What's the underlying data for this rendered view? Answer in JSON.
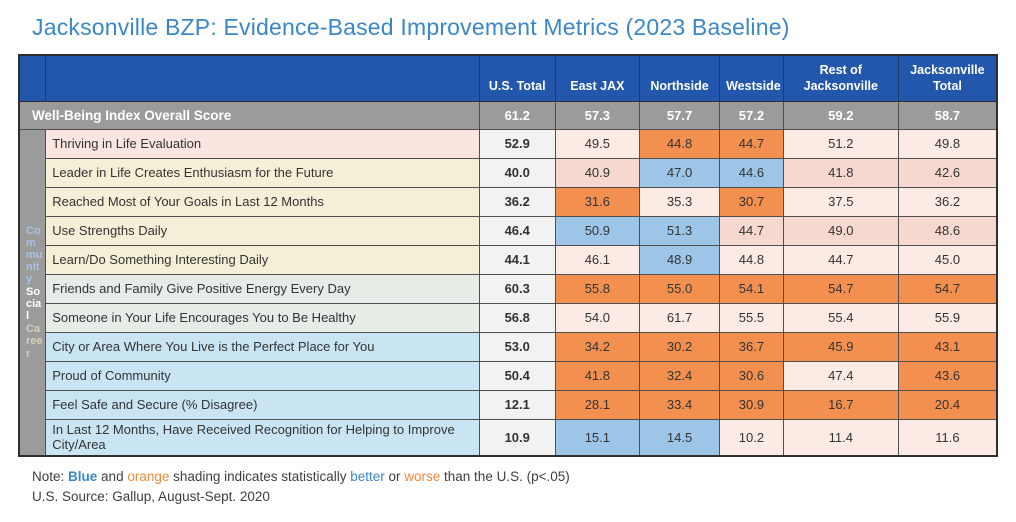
{
  "title": "Jacksonville BZP: Evidence-Based Improvement Metrics (2023 Baseline)",
  "chart_data": {
    "type": "table",
    "title": "Jacksonville BZP: Evidence-Based Improvement Metrics (2023 Baseline)",
    "columns": [
      "U.S. Total",
      "East JAX",
      "Northside",
      "Westside",
      "Rest of Jacksonville",
      "Jacksonville Total"
    ],
    "overall_row": {
      "label": "Well-Being Index Overall Score",
      "values": [
        "61.2",
        "57.3",
        "57.7",
        "57.2",
        "59.2",
        "58.7"
      ]
    },
    "side_labels": [
      {
        "text": "Community",
        "color": "#A9C2E4"
      },
      {
        "text": "Social",
        "color": "#FFFFFF"
      },
      {
        "text": "Career",
        "color": "#D6D0B8"
      }
    ],
    "shading_legend": {
      "blue_means": "statistically better than the U.S.",
      "orange_means": "statistically worse than the U.S.",
      "blue_hex": "#9DC5E8",
      "orange_hex": "#F4904F"
    },
    "rows": [
      {
        "label": "Thriving in Life Evaluation",
        "label_bg": "pink",
        "us": "52.9",
        "values": [
          "49.5",
          "44.8",
          "44.7",
          "51.2",
          "49.8"
        ],
        "shades": [
          "p1",
          "orange",
          "orange",
          "p1",
          "p1"
        ]
      },
      {
        "label": "Leader in Life Creates Enthusiasm for the Future",
        "label_bg": "cream",
        "us": "40.0",
        "values": [
          "40.9",
          "47.0",
          "44.6",
          "41.8",
          "42.6"
        ],
        "shades": [
          "p2",
          "blue",
          "blue",
          "p2",
          "p2"
        ]
      },
      {
        "label": "Reached Most of Your Goals in Last 12 Months",
        "label_bg": "cream",
        "us": "36.2",
        "values": [
          "31.6",
          "35.3",
          "30.7",
          "37.5",
          "36.2"
        ],
        "shades": [
          "orange",
          "p1",
          "orange",
          "p1",
          "p1"
        ]
      },
      {
        "label": "Use Strengths Daily",
        "label_bg": "cream",
        "us": "46.4",
        "values": [
          "50.9",
          "51.3",
          "44.7",
          "49.0",
          "48.6"
        ],
        "shades": [
          "blue",
          "blue",
          "p2",
          "p2",
          "p2"
        ]
      },
      {
        "label": "Learn/Do Something Interesting Daily",
        "label_bg": "cream",
        "us": "44.1",
        "values": [
          "46.1",
          "48.9",
          "44.8",
          "44.7",
          "45.0"
        ],
        "shades": [
          "p1",
          "blue",
          "p1",
          "p1",
          "p1"
        ]
      },
      {
        "label": "Friends and Family Give Positive Energy Every Day",
        "label_bg": "mint",
        "us": "60.3",
        "values": [
          "55.8",
          "55.0",
          "54.1",
          "54.7",
          "54.7"
        ],
        "shades": [
          "orange",
          "orange",
          "orange",
          "orange",
          "orange"
        ]
      },
      {
        "label": "Someone in Your Life Encourages You to Be Healthy",
        "label_bg": "mint",
        "us": "56.8",
        "values": [
          "54.0",
          "61.7",
          "55.5",
          "55.4",
          "55.9"
        ],
        "shades": [
          "p1",
          "p1",
          "p1",
          "p1",
          "p1"
        ]
      },
      {
        "label": "City or Area Where You Live is the Perfect Place for You",
        "label_bg": "lblue",
        "us": "53.0",
        "values": [
          "34.2",
          "30.2",
          "36.7",
          "45.9",
          "43.1"
        ],
        "shades": [
          "orange",
          "orange",
          "orange",
          "orange",
          "orange"
        ]
      },
      {
        "label": "Proud of Community",
        "label_bg": "lblue",
        "us": "50.4",
        "values": [
          "41.8",
          "32.4",
          "30.6",
          "47.4",
          "43.6"
        ],
        "shades": [
          "orange",
          "orange",
          "orange",
          "p1",
          "orange"
        ]
      },
      {
        "label": "Feel Safe and Secure (% Disagree)",
        "label_bg": "lblue",
        "us": "12.1",
        "values": [
          "28.1",
          "33.4",
          "30.9",
          "16.7",
          "20.4"
        ],
        "shades": [
          "orange",
          "orange",
          "orange",
          "orange",
          "orange"
        ]
      },
      {
        "label": "In Last 12 Months, Have Received Recognition for Helping to Improve City/Area",
        "label_bg": "lblue",
        "us": "10.9",
        "values": [
          "15.1",
          "14.5",
          "10.2",
          "11.4",
          "11.6"
        ],
        "shades": [
          "blue",
          "blue",
          "p1",
          "p1",
          "p1"
        ]
      }
    ]
  },
  "note": {
    "prefix": "Note: ",
    "blue_word": "Blue",
    "and_word": " and ",
    "orange_word": "orange",
    "mid": " shading indicates statistically ",
    "better_word": "better",
    "or_word": " or ",
    "worse_word": "worse",
    "suffix": " than the U.S. (p<.05)"
  },
  "source_line": "U.S. Source: Gallup, August-Sept. 2020"
}
